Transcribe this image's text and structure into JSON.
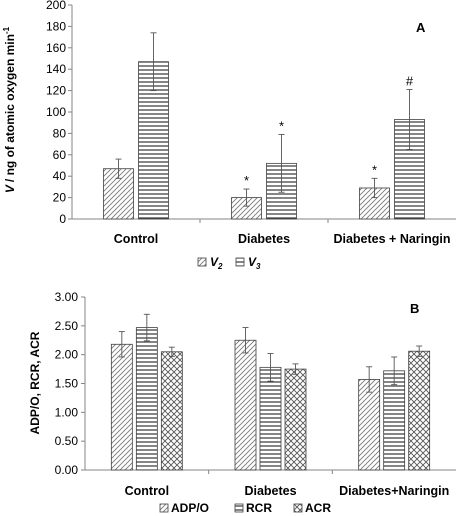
{
  "chart_data": [
    {
      "type": "bar",
      "panel_label": "A",
      "ylabel_var": "V",
      "ylabel_rest": "/ ng of atomic oxygen min",
      "ylabel_sup": "-1",
      "ylim": [
        0,
        200
      ],
      "yticks": [
        "0",
        "20",
        "40",
        "60",
        "80",
        "100",
        "120",
        "140",
        "160",
        "180",
        "200"
      ],
      "categories": [
        "Control",
        "Diabetes",
        "Diabetes + Naringin"
      ],
      "series": [
        {
          "name": "V",
          "sub": "2",
          "values": [
            47,
            20,
            29
          ],
          "errors": [
            9,
            8,
            9
          ],
          "annotations": [
            "",
            "*",
            "*"
          ],
          "pattern": "diag"
        },
        {
          "name": "V",
          "sub": "3",
          "values": [
            147,
            52,
            93
          ],
          "errors": [
            27,
            27,
            28
          ],
          "annotations": [
            "",
            "*",
            "#"
          ],
          "pattern": "horiz"
        }
      ],
      "legend": "bottom"
    },
    {
      "type": "bar",
      "panel_label": "B",
      "ylabel": "ADP/O, RCR,  ACR",
      "ylim": [
        0,
        3
      ],
      "yticks": [
        "0.00",
        "0.50",
        "1.00",
        "1.50",
        "2.00",
        "2.50",
        "3.00"
      ],
      "categories": [
        "Control",
        "Diabetes",
        "Diabetes+Naringin"
      ],
      "series": [
        {
          "name": "ADP/O",
          "values": [
            2.18,
            2.25,
            1.57
          ],
          "errors": [
            0.22,
            0.22,
            0.22
          ],
          "pattern": "diag"
        },
        {
          "name": "RCR",
          "values": [
            2.47,
            1.78,
            1.72
          ],
          "errors": [
            0.23,
            0.24,
            0.24
          ],
          "pattern": "horiz"
        },
        {
          "name": "ACR",
          "values": [
            2.05,
            1.75,
            2.06
          ],
          "errors": [
            0.08,
            0.09,
            0.09
          ],
          "pattern": "cross"
        }
      ],
      "legend": "bottom"
    }
  ]
}
